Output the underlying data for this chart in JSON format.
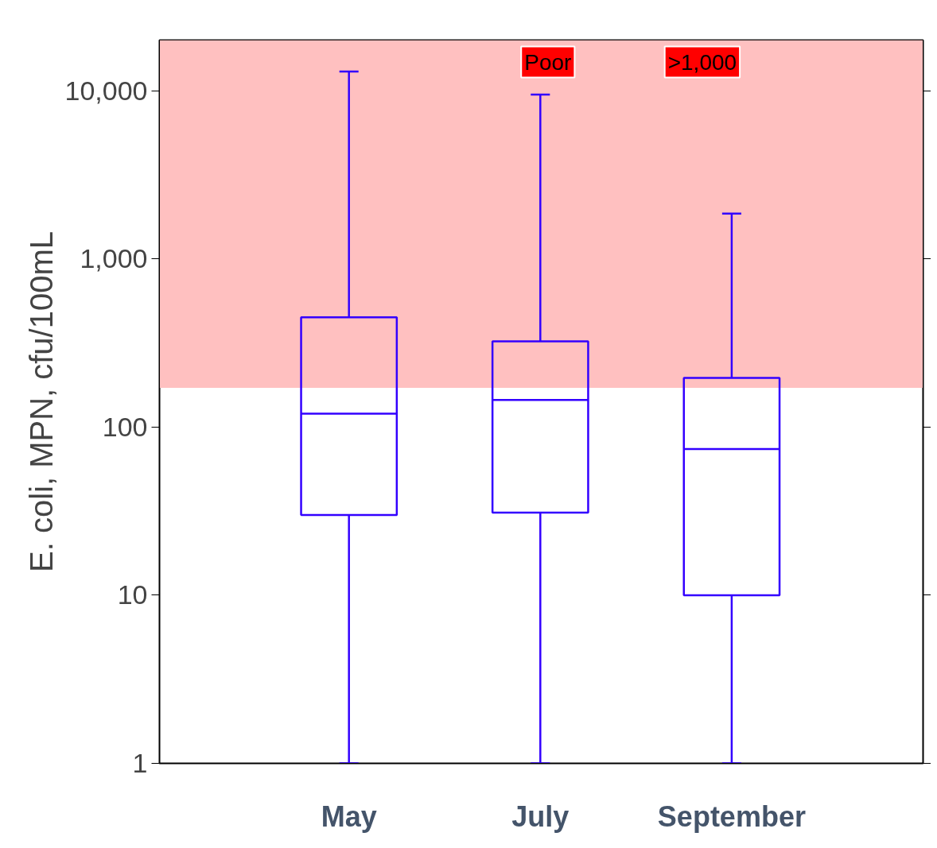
{
  "chart_data": {
    "type": "box",
    "ylabel": "E. coli, MPN, cfu/100mL",
    "categories": [
      "May",
      "July",
      "September"
    ],
    "series": [
      {
        "color": "#3300ff",
        "boxes": [
          {
            "low": 1,
            "q1": 30,
            "median": 120,
            "q3": 450,
            "high": 13000
          },
          {
            "low": 1,
            "q1": 31,
            "median": 145,
            "q3": 323,
            "high": 9500
          },
          {
            "low": 1,
            "q1": 10,
            "median": 74,
            "q3": 196,
            "high": 1860
          }
        ]
      }
    ],
    "ylim": [
      1,
      20000
    ],
    "yticks": [
      1,
      10,
      100,
      {
        "value": 1000,
        "label": "1,000"
      },
      {
        "value": 10000,
        "label": "10,000"
      }
    ],
    "log": true,
    "grid": false,
    "bands": [
      {
        "axis": "y",
        "from": 171,
        "to": 20000,
        "color": "#ffc0c0"
      }
    ],
    "annotations": [
      "Poor",
      ">1,000"
    ]
  }
}
